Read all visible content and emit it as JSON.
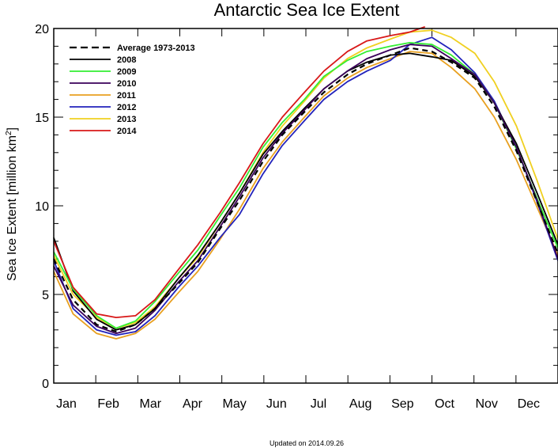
{
  "chart_data": {
    "type": "line",
    "title": "Antarctic Sea Ice Extent",
    "ylabel": "Sea Ice Extent [million km²]",
    "ylabel_main": "Sea Ice Extent [million km",
    "ylabel_sup": "2",
    "ylabel_end": "]",
    "xlabel": "",
    "ylim": [
      0,
      20
    ],
    "yticks": [
      0,
      5,
      10,
      15,
      20
    ],
    "month_labels": [
      "Jan",
      "Feb",
      "Mar",
      "Apr",
      "May",
      "Jun",
      "Jul",
      "Aug",
      "Sep",
      "Oct",
      "Nov",
      "Dec"
    ],
    "grid": false,
    "legend_position": "top-left",
    "footnote": "Updated on 2014.09.26",
    "series": [
      {
        "name": "Average 1973-2013",
        "color": "#000000",
        "dashed": true,
        "x": [
          1,
          15,
          32,
          46,
          60,
          74,
          91,
          105,
          121,
          135,
          152,
          166,
          182,
          196,
          213,
          227,
          244,
          258,
          274,
          288,
          305,
          319,
          335,
          350,
          365
        ],
        "values": [
          7.0,
          4.7,
          3.3,
          2.9,
          3.3,
          4.2,
          5.6,
          6.8,
          8.7,
          10.3,
          12.5,
          14.0,
          15.3,
          16.4,
          17.4,
          18.0,
          18.5,
          18.9,
          18.7,
          18.1,
          17.2,
          15.6,
          13.1,
          10.2,
          7.3
        ]
      },
      {
        "name": "2008",
        "color": "#000000",
        "dashed": false,
        "x": [
          1,
          15,
          32,
          46,
          60,
          74,
          91,
          105,
          121,
          135,
          152,
          166,
          182,
          196,
          213,
          227,
          244,
          258,
          274,
          288,
          305,
          319,
          335,
          350,
          365
        ],
        "values": [
          8.2,
          5.2,
          3.6,
          3.0,
          3.3,
          4.2,
          5.9,
          7.2,
          9.0,
          10.7,
          12.9,
          14.2,
          15.5,
          16.6,
          17.6,
          18.1,
          18.5,
          18.6,
          18.4,
          18.2,
          17.3,
          15.8,
          13.5,
          10.7,
          7.8
        ]
      },
      {
        "name": "2009",
        "color": "#33ee33",
        "dashed": false,
        "x": [
          1,
          15,
          32,
          46,
          60,
          74,
          91,
          105,
          121,
          135,
          152,
          166,
          182,
          196,
          213,
          227,
          244,
          258,
          274,
          288,
          305,
          319,
          335,
          350,
          365
        ],
        "values": [
          7.4,
          5.3,
          3.8,
          3.1,
          3.5,
          4.6,
          6.2,
          7.5,
          9.4,
          11.0,
          13.3,
          14.7,
          16.0,
          17.3,
          18.2,
          18.7,
          19.0,
          19.2,
          19.1,
          18.5,
          17.4,
          15.8,
          13.2,
          10.4,
          7.6
        ]
      },
      {
        "name": "2010",
        "color": "#3a005a",
        "dashed": false,
        "x": [
          1,
          15,
          32,
          46,
          60,
          74,
          91,
          105,
          121,
          135,
          152,
          166,
          182,
          196,
          213,
          227,
          244,
          258,
          274,
          288,
          305,
          319,
          335,
          350,
          365
        ],
        "values": [
          6.6,
          4.4,
          3.2,
          2.8,
          3.1,
          4.1,
          5.7,
          6.9,
          8.8,
          10.5,
          12.7,
          14.1,
          15.4,
          16.6,
          17.6,
          18.3,
          18.8,
          19.1,
          19.0,
          18.3,
          17.4,
          15.8,
          13.3,
          10.3,
          7.0
        ]
      },
      {
        "name": "2011",
        "color": "#e8a020",
        "dashed": false,
        "x": [
          1,
          15,
          32,
          46,
          60,
          74,
          91,
          105,
          121,
          135,
          152,
          166,
          182,
          196,
          213,
          227,
          244,
          258,
          274,
          288,
          305,
          319,
          335,
          350,
          365
        ],
        "values": [
          6.3,
          3.9,
          2.8,
          2.5,
          2.8,
          3.6,
          5.1,
          6.3,
          8.1,
          9.8,
          12.1,
          13.6,
          15.0,
          16.2,
          17.2,
          17.8,
          18.3,
          18.7,
          18.6,
          17.8,
          16.6,
          15.0,
          12.6,
          9.9,
          7.2
        ]
      },
      {
        "name": "2012",
        "color": "#2222bb",
        "dashed": false,
        "x": [
          1,
          15,
          32,
          46,
          60,
          74,
          91,
          105,
          121,
          135,
          152,
          166,
          182,
          196,
          213,
          227,
          244,
          258,
          274,
          288,
          305,
          319,
          335,
          350,
          365
        ],
        "values": [
          6.9,
          4.2,
          3.0,
          2.7,
          2.9,
          3.8,
          5.4,
          6.6,
          8.2,
          9.5,
          11.8,
          13.4,
          14.8,
          16.0,
          17.0,
          17.6,
          18.2,
          19.1,
          19.5,
          18.8,
          17.5,
          15.9,
          13.3,
          10.2,
          6.9
        ]
      },
      {
        "name": "2013",
        "color": "#f0d020",
        "dashed": false,
        "x": [
          1,
          15,
          32,
          46,
          60,
          74,
          91,
          105,
          121,
          135,
          152,
          166,
          182,
          196,
          213,
          227,
          244,
          258,
          274,
          288,
          305,
          319,
          335,
          350,
          365
        ],
        "values": [
          7.2,
          5.0,
          3.7,
          3.1,
          3.4,
          4.3,
          5.9,
          7.1,
          9.0,
          10.7,
          13.0,
          14.5,
          15.9,
          17.2,
          18.3,
          18.9,
          19.4,
          19.8,
          19.9,
          19.5,
          18.6,
          17.0,
          14.5,
          11.4,
          8.1
        ]
      },
      {
        "name": "2014",
        "color": "#d81818",
        "dashed": false,
        "x": [
          1,
          15,
          32,
          46,
          60,
          74,
          91,
          105,
          121,
          135,
          152,
          166,
          182,
          196,
          213,
          227,
          244,
          258,
          269
        ],
        "values": [
          8.0,
          5.4,
          3.9,
          3.7,
          3.8,
          4.7,
          6.4,
          7.8,
          9.6,
          11.3,
          13.5,
          15.0,
          16.4,
          17.6,
          18.7,
          19.3,
          19.6,
          19.8,
          20.1
        ]
      }
    ]
  }
}
